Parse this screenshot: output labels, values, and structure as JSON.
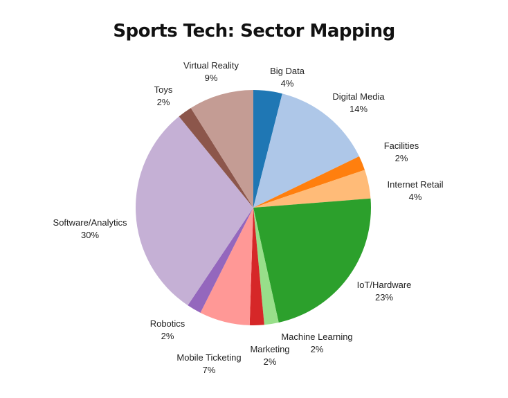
{
  "chart_data": {
    "type": "pie",
    "title": "Sports Tech: Sector Mapping",
    "start": "top",
    "direction": "clockwise",
    "slices": [
      {
        "label": "Big Data",
        "value": 4,
        "value_label": "4%",
        "color": "#1f77b4"
      },
      {
        "label": "Digital Media",
        "value": 14,
        "value_label": "14%",
        "color": "#aec7e8"
      },
      {
        "label": "Facilities",
        "value": 2,
        "value_label": "2%",
        "color": "#ff7f0e"
      },
      {
        "label": "Internet Retail",
        "value": 4,
        "value_label": "4%",
        "color": "#ffbb78"
      },
      {
        "label": "IoT/Hardware",
        "value": 23,
        "value_label": "23%",
        "color": "#2ca02c"
      },
      {
        "label": "Machine Learning",
        "value": 2,
        "value_label": "2%",
        "color": "#98df8a"
      },
      {
        "label": "Marketing",
        "value": 2,
        "value_label": "2%",
        "color": "#d62728"
      },
      {
        "label": "Mobile Ticketing",
        "value": 7,
        "value_label": "7%",
        "color": "#ff9896"
      },
      {
        "label": "Robotics",
        "value": 2,
        "value_label": "2%",
        "color": "#9467bd"
      },
      {
        "label": "Software/Analytics",
        "value": 30,
        "value_label": "30%",
        "color": "#c5b0d5"
      },
      {
        "label": "Toys",
        "value": 2,
        "value_label": "2%",
        "color": "#8c564b"
      },
      {
        "label": "Virtual Reality",
        "value": 9,
        "value_label": "9%",
        "color": "#c49c94"
      }
    ]
  }
}
